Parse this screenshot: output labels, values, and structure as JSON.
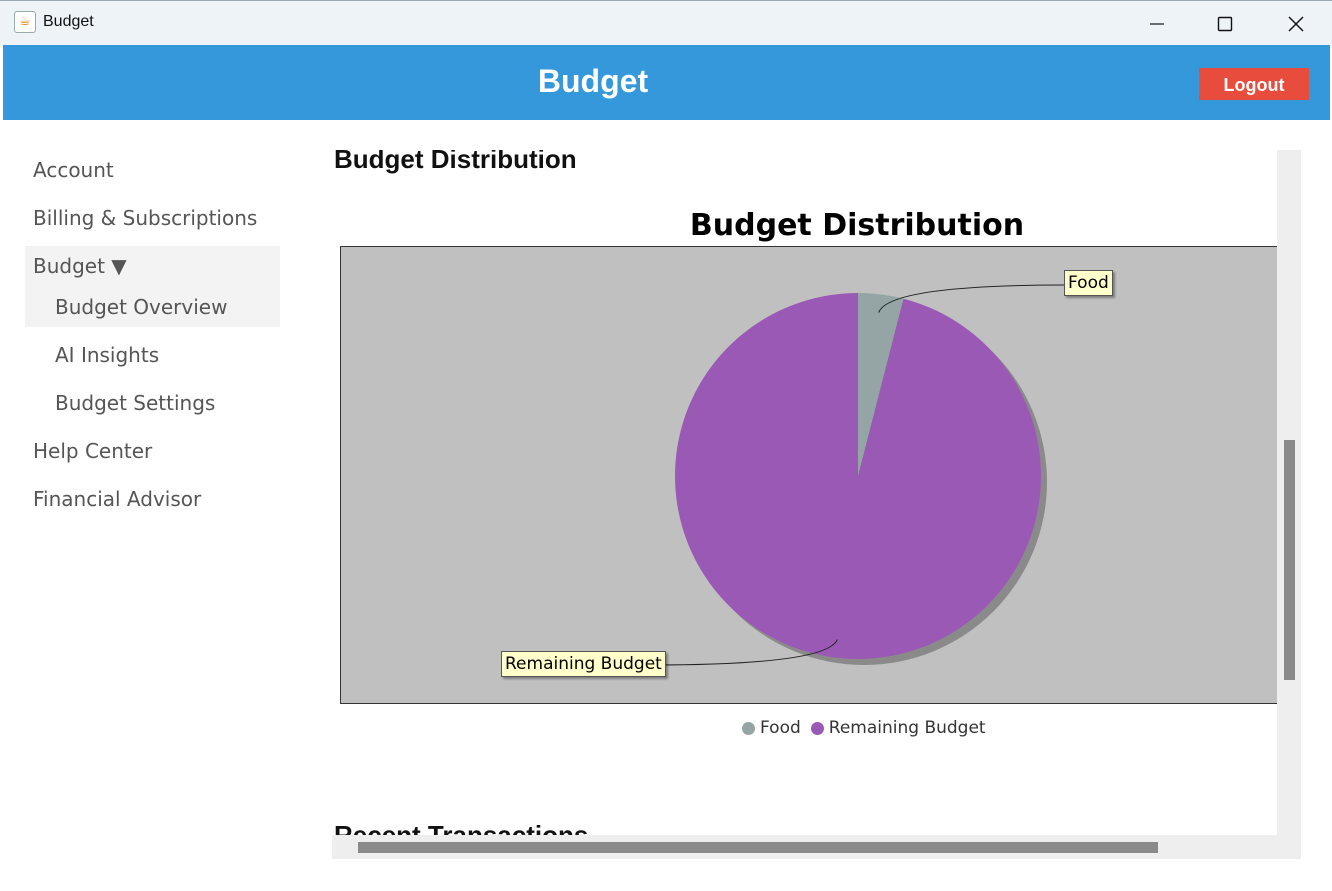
{
  "window": {
    "title": "Budget",
    "app_icon": "java-coffee-icon",
    "controls": [
      "minimize-icon",
      "maximize-icon",
      "close-icon"
    ]
  },
  "header": {
    "title": "Budget",
    "logout_label": "Logout",
    "background_color": "#3498db",
    "logout_color": "#e74c3c"
  },
  "sidebar": {
    "items": [
      {
        "label": "Account"
      },
      {
        "label": "Billing & Subscriptions"
      },
      {
        "label": "Budget ▼",
        "expanded": true
      },
      {
        "label": "Budget Overview",
        "selected": true
      },
      {
        "label": "AI Insights"
      },
      {
        "label": "Budget Settings"
      },
      {
        "label": "Help Center"
      },
      {
        "label": "Financial Advisor"
      }
    ]
  },
  "main": {
    "section_title": "Budget Distribution",
    "next_section_title": "Recent Transactions"
  },
  "chart_data": {
    "type": "pie",
    "title": "Budget Distribution",
    "categories": [
      "Food",
      "Remaining Budget"
    ],
    "values": [
      4,
      96
    ],
    "colors": [
      "#95a5a6",
      "#9b59b6"
    ],
    "plot_background": "#c0c0c0",
    "legend_position": "bottom",
    "labels": [
      "Food",
      "Remaining Budget"
    ]
  }
}
